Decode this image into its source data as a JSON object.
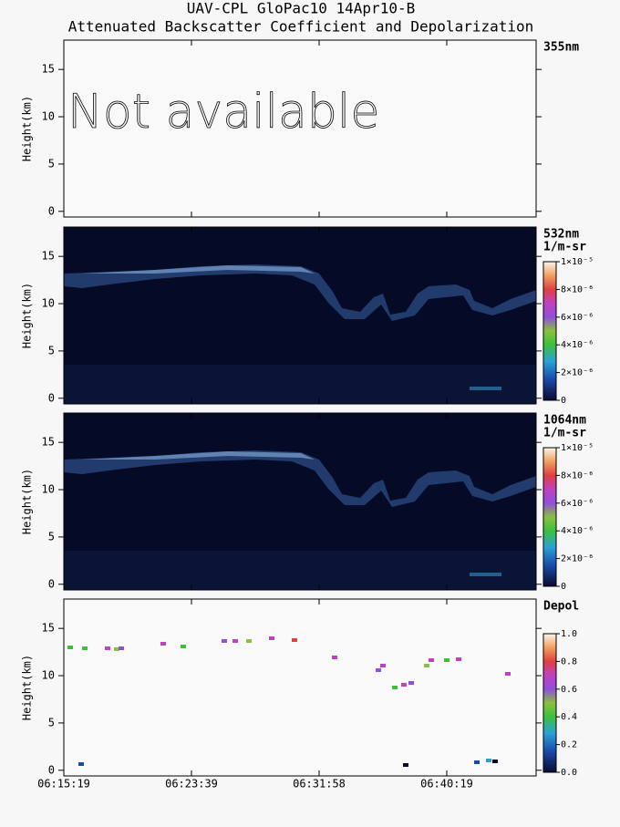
{
  "figure": {
    "title": "UAV-CPL GloPac10 14Apr10-B",
    "subtitle": "Attenuated Backscatter Coefficient and Depolarization"
  },
  "chart_data": [
    {
      "type": "heatmap",
      "label": "355nm",
      "message": "Not available",
      "ylabel": "Height(km)",
      "ylim": [
        -0.6,
        18.1
      ],
      "yticks": [
        0,
        5,
        10,
        15
      ]
    },
    {
      "type": "heatmap",
      "label": "532nm",
      "units": "1/m-sr",
      "ylabel": "Height(km)",
      "ylim": [
        -0.6,
        18.1
      ],
      "yticks": [
        0,
        5,
        10,
        15
      ],
      "clim": [
        0,
        1e-05
      ],
      "cticks": [
        0,
        {
          "value": 2e-06,
          "label": "2×10⁻⁶"
        },
        {
          "value": 4e-06,
          "label": "4×10⁻⁶"
        },
        {
          "value": 6e-06,
          "label": "6×10⁻⁶"
        },
        {
          "value": 8e-06,
          "label": "8×10⁻⁶"
        },
        {
          "value": 1e-05,
          "label": "1×10⁻⁵"
        }
      ]
    },
    {
      "type": "heatmap",
      "label": "1064nm",
      "units": "1/m-sr",
      "ylabel": "Height(km)",
      "ylim": [
        -0.6,
        18.1
      ],
      "yticks": [
        0,
        5,
        10,
        15
      ],
      "clim": [
        0,
        1e-05
      ],
      "cticks": [
        0,
        {
          "value": 2e-06,
          "label": "2×10⁻⁶"
        },
        {
          "value": 4e-06,
          "label": "4×10⁻⁶"
        },
        {
          "value": 6e-06,
          "label": "6×10⁻⁶"
        },
        {
          "value": 8e-06,
          "label": "8×10⁻⁶"
        },
        {
          "value": 1e-05,
          "label": "1×10⁻⁵"
        }
      ]
    },
    {
      "type": "heatmap",
      "label": "Depol",
      "ylabel": "Height(km)",
      "ylim": [
        -0.6,
        18.1
      ],
      "yticks": [
        0,
        5,
        10,
        15
      ],
      "clim": [
        0,
        1
      ],
      "cticks": [
        {
          "value": 0,
          "label": "0.0"
        },
        {
          "value": 0.2,
          "label": "0.2"
        },
        {
          "value": 0.4,
          "label": "0.4"
        },
        {
          "value": 0.6,
          "label": "0.6"
        },
        {
          "value": 0.8,
          "label": "0.8"
        },
        {
          "value": 1,
          "label": "1.0"
        }
      ],
      "xticks": [
        "06:15:19",
        "06:23:39",
        "06:31:58",
        "06:40:19"
      ]
    }
  ]
}
